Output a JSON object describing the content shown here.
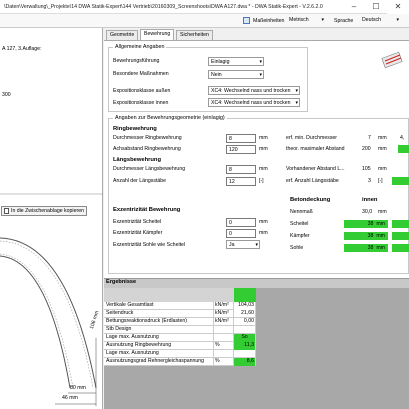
{
  "window": {
    "title": "\\Daten\\Verwaltung\\_Projekte\\14 DWA Statik-Expert\\144 Vertrieb\\20160309_Screenshoots\\DWA A127.dwa * - DWA Statik-Expert - V.2.6.2.0",
    "minimize": "–",
    "maximize": "☐",
    "close": "✕"
  },
  "toolbar": {
    "units_label": "Maßeinheiten",
    "units_value": "Metrisch",
    "language_label": "Sprache",
    "language_value": "Deutsch"
  },
  "left_panel": {
    "line1": "A 127, 3.Auflage:",
    "line2": "300",
    "copy_button": "In die Zwischenablage kopieren",
    "dim_106": "106 mm",
    "dim_80": "80 mm",
    "dim_46": "46 mm"
  },
  "tabs": [
    "Geometrie",
    "Bewehrung",
    "Sicherheiten"
  ],
  "general": {
    "title": "Allgemeine Angaben",
    "rows": [
      {
        "label": "Bewehrungsführung",
        "value": "Einlagig"
      },
      {
        "label": "Besondere Maßnahmen",
        "value": "Nein"
      },
      {
        "label": "Expositionsklasse außen",
        "value": "XC4: Wechselnd nass und trocken"
      },
      {
        "label": "Expositionsklasse innen",
        "value": "XC4: Wechselnd nass und trocken"
      }
    ]
  },
  "reinforcement": {
    "title": "Angaben zur Bewehrungsgeometrie (einlagig)",
    "ring_heading": "Ringbewehrung",
    "ring_rows": [
      {
        "label": "Durchmesser Ringbewehrung",
        "value": "8",
        "unit": "mm"
      },
      {
        "label": "Achsabstand Ringbewehrung",
        "value": "120",
        "unit": "mm"
      }
    ],
    "long_heading": "Längsbewehrung",
    "long_rows": [
      {
        "label": "Durchmesser Längsbewehrung",
        "value": "8",
        "unit": "mm"
      },
      {
        "label": "Anzahl der Längsstäbe",
        "value": "12",
        "unit": "[-]"
      }
    ],
    "right_rows": [
      {
        "label": "erf. min. Durchmesser",
        "value": "7",
        "unit": "mm",
        "extra": "4,"
      },
      {
        "label": "theor. maximaler Abstand",
        "value": "200",
        "unit": "mm"
      },
      {
        "label": "Vorhandener Abstand L...",
        "value": "105",
        "unit": "mm"
      },
      {
        "label": "erf. Anzahl Längsstäbe",
        "value": "3",
        "unit": "[-]"
      }
    ],
    "ecc_heading": "Exzentrizität  Bewehrung",
    "ecc_rows": [
      {
        "label": "Exzentrizität Scheitel",
        "value": "0",
        "unit": "mm"
      },
      {
        "label": "Exzentrizität Kämpfer",
        "value": "0",
        "unit": "mm"
      },
      {
        "label": "Exzentrizität Sohle wie Scheitel",
        "value": "Ja",
        "unit": ""
      }
    ],
    "cover_heading": "Betondeckung",
    "cover_col": "innen",
    "nennmass_label": "Nennmaß",
    "nennmass_value": "30,0",
    "nennmass_unit": "mm",
    "cover_rows": [
      {
        "label": "Scheitel",
        "value": "38",
        "unit": "mm"
      },
      {
        "label": "Kämpfer",
        "value": "38",
        "unit": "mm"
      },
      {
        "label": "Sohle",
        "value": "38",
        "unit": "mm"
      }
    ]
  },
  "results": {
    "title": "Ergebnisse",
    "rows": [
      {
        "label": "Vertikale Gesamtlast",
        "unit": "kN/m²",
        "value": "104,03"
      },
      {
        "label": "Seitendruck",
        "unit": "kN/m²",
        "value": "21,60"
      },
      {
        "label": "Bettungsreaktionsdruck (Erdlasten)",
        "unit": "kN/m²",
        "value": "0,00"
      },
      {
        "label": "Stb Design",
        "unit": "",
        "value": ""
      },
      {
        "label": "Lage max. Ausnutzung",
        "unit": "",
        "value": "So"
      },
      {
        "label": "Ausnutzung Ringbewehrung",
        "unit": "%",
        "value": "11,3"
      },
      {
        "label": "Lage max. Ausnutzung",
        "unit": "",
        "value": ""
      },
      {
        "label": "Ausnutzungsgrad Rehnergleichaspannung",
        "unit": "%",
        "value": "8,6"
      }
    ]
  },
  "colors": {
    "accent_green": "#33cc33"
  }
}
